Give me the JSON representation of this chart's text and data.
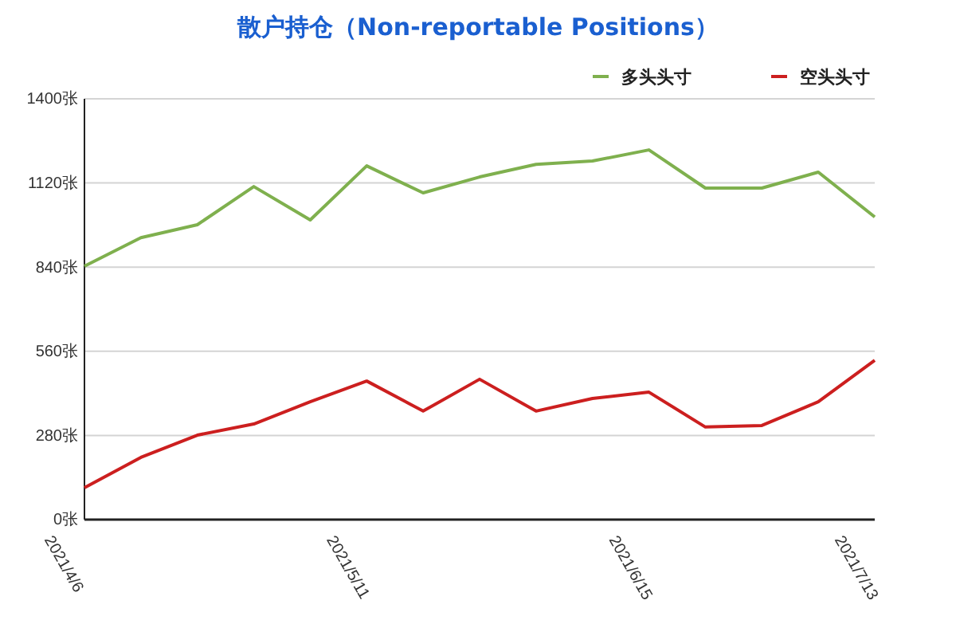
{
  "chart_data": {
    "type": "line",
    "title": "散户持仓（Non-reportable Positions）",
    "categories": [
      "2021/4/6",
      null,
      null,
      null,
      null,
      "2021/5/11",
      null,
      null,
      null,
      null,
      "2021/6/15",
      null,
      null,
      null,
      "2021/7/13"
    ],
    "series": [
      {
        "name": "多头头寸",
        "color": "#7fb04e",
        "values": [
          843,
          938,
          981,
          1108,
          997,
          1177,
          1087,
          1140,
          1182,
          1193,
          1230,
          1103,
          1103,
          1156,
          1007
        ]
      },
      {
        "name": "空头头寸",
        "color": "#cc1f1f",
        "values": [
          106,
          207,
          281,
          318,
          392,
          461,
          361,
          467,
          361,
          403,
          424,
          308,
          313,
          392,
          530
        ]
      }
    ],
    "ylim": [
      0,
      1400
    ],
    "yticks": [
      {
        "value": 0,
        "label": "0张"
      },
      {
        "value": 280,
        "label": "280张"
      },
      {
        "value": 560,
        "label": "560张"
      },
      {
        "value": 840,
        "label": "840张"
      },
      {
        "value": 1120,
        "label": "1120张"
      },
      {
        "value": 1400,
        "label": "1400张"
      }
    ],
    "grid": "y",
    "legend": "top right",
    "marker": "none",
    "line_style": "solid"
  }
}
